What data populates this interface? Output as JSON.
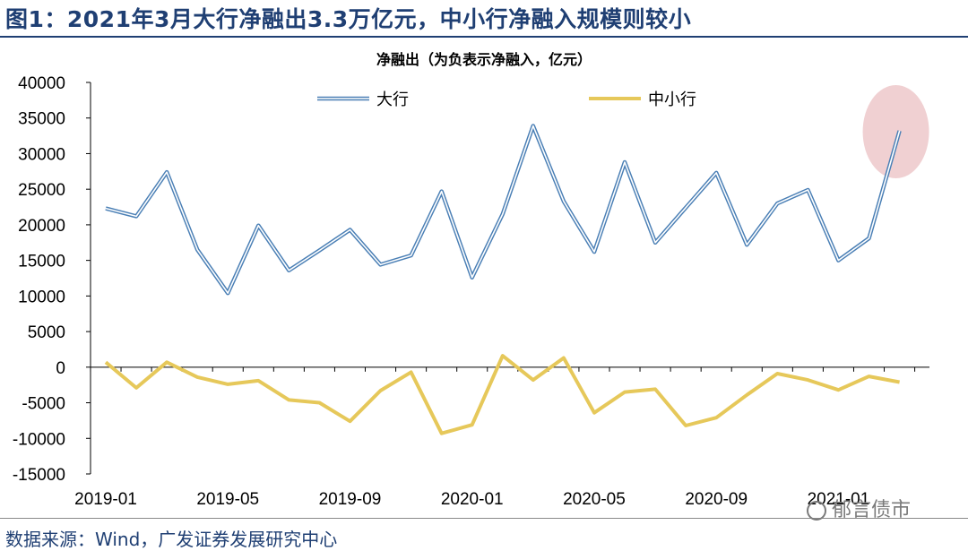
{
  "figure": {
    "title": "图1：2021年3月大行净融出3.3万亿元，中小行净融入规模则较小",
    "source": "数据来源：Wind，广发证券发展研究中心",
    "watermark": "郁言债市"
  },
  "chart_data": {
    "type": "line",
    "title": "净融出（为负表示净融入，亿元）",
    "xlabel": "",
    "ylabel": "",
    "ylim": [
      -15000,
      40000
    ],
    "yticks": [
      40000,
      35000,
      30000,
      25000,
      20000,
      15000,
      10000,
      5000,
      0,
      -5000,
      -10000,
      -15000
    ],
    "x_tick_labels": [
      "2019-01",
      "2019-05",
      "2019-09",
      "2020-01",
      "2020-05",
      "2020-09",
      "2021-01"
    ],
    "x": [
      "2019-01",
      "2019-02",
      "2019-03",
      "2019-04",
      "2019-05",
      "2019-06",
      "2019-07",
      "2019-08",
      "2019-09",
      "2019-10",
      "2019-11",
      "2019-12",
      "2020-01",
      "2020-02",
      "2020-03",
      "2020-04",
      "2020-05",
      "2020-06",
      "2020-07",
      "2020-08",
      "2020-09",
      "2020-10",
      "2020-11",
      "2020-12",
      "2021-01",
      "2021-02",
      "2021-03"
    ],
    "legend_position": "top",
    "grid": false,
    "series": [
      {
        "name": "大行",
        "color": "#4a7fb5",
        "values": [
          22300,
          21200,
          27400,
          16500,
          10400,
          19900,
          13600,
          16400,
          19300,
          14400,
          15700,
          24700,
          12600,
          21500,
          33900,
          23300,
          16200,
          28800,
          17500,
          22400,
          27300,
          17200,
          23000,
          24900,
          15000,
          18100,
          33200
        ]
      },
      {
        "name": "中小行",
        "color": "#e6c85a",
        "values": [
          700,
          -2900,
          700,
          -1400,
          -2400,
          -1900,
          -4600,
          -5000,
          -7600,
          -3300,
          -700,
          -9300,
          -8100,
          1600,
          -1800,
          1300,
          -6400,
          -3500,
          -3100,
          -8200,
          -7100,
          -3900,
          -900,
          -1800,
          -3200,
          -1300,
          -2100
        ]
      }
    ],
    "annotation": "highlight-ellipse-latest-point"
  }
}
